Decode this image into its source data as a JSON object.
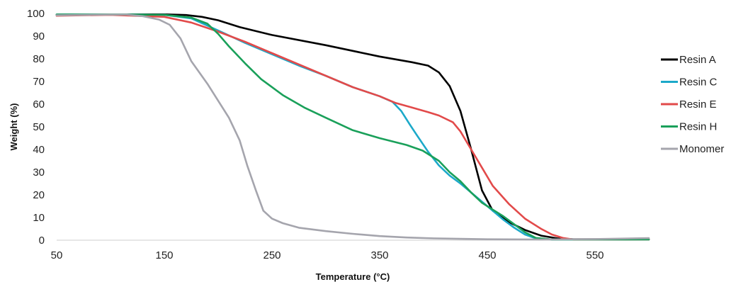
{
  "chart_data": {
    "type": "line",
    "xlabel": "Temperature (°C)",
    "ylabel": "Weight (%)",
    "xlim": [
      50,
      600
    ],
    "ylim": [
      0,
      100
    ],
    "x_ticks": [
      50,
      150,
      250,
      350,
      450,
      550
    ],
    "y_ticks": [
      0,
      10,
      20,
      30,
      40,
      50,
      60,
      70,
      80,
      90,
      100
    ],
    "grid": false,
    "legend_position": "right",
    "series": [
      {
        "name": "Resin A",
        "color": "#000000",
        "points": [
          [
            50,
            99.5
          ],
          [
            100,
            99.6
          ],
          [
            150,
            99.6
          ],
          [
            170,
            99.3
          ],
          [
            185,
            98.5
          ],
          [
            200,
            97
          ],
          [
            220,
            94
          ],
          [
            250,
            90.5
          ],
          [
            300,
            86
          ],
          [
            350,
            81
          ],
          [
            380,
            78.5
          ],
          [
            395,
            77
          ],
          [
            405,
            74
          ],
          [
            415,
            68
          ],
          [
            425,
            57
          ],
          [
            435,
            40
          ],
          [
            445,
            22
          ],
          [
            455,
            13
          ],
          [
            470,
            8
          ],
          [
            485,
            4.5
          ],
          [
            500,
            2
          ],
          [
            515,
            0.8
          ],
          [
            530,
            0.4
          ],
          [
            600,
            0.4
          ]
        ]
      },
      {
        "name": "Resin C",
        "color": "#1ca9c9",
        "points": [
          [
            50,
            99.5
          ],
          [
            100,
            99.6
          ],
          [
            150,
            99.4
          ],
          [
            175,
            97.8
          ],
          [
            200,
            92.5
          ],
          [
            225,
            87
          ],
          [
            250,
            82
          ],
          [
            275,
            77
          ],
          [
            300,
            72.5
          ],
          [
            325,
            67.5
          ],
          [
            350,
            63.5
          ],
          [
            362,
            61
          ],
          [
            370,
            57
          ],
          [
            378,
            51
          ],
          [
            385,
            46
          ],
          [
            395,
            39
          ],
          [
            405,
            33
          ],
          [
            415,
            28.5
          ],
          [
            425,
            25
          ],
          [
            435,
            21
          ],
          [
            445,
            17
          ],
          [
            455,
            13
          ],
          [
            465,
            9
          ],
          [
            475,
            5.5
          ],
          [
            485,
            2.5
          ],
          [
            495,
            0.8
          ],
          [
            510,
            0.3
          ],
          [
            600,
            0.3
          ]
        ]
      },
      {
        "name": "Resin E",
        "color": "#e24a4a",
        "points": [
          [
            50,
            99
          ],
          [
            100,
            99.4
          ],
          [
            150,
            98.5
          ],
          [
            175,
            96
          ],
          [
            200,
            92
          ],
          [
            225,
            87.5
          ],
          [
            250,
            82.5
          ],
          [
            275,
            77.5
          ],
          [
            300,
            72.5
          ],
          [
            325,
            67.5
          ],
          [
            350,
            63.5
          ],
          [
            365,
            60.5
          ],
          [
            380,
            58.5
          ],
          [
            395,
            56.5
          ],
          [
            405,
            55
          ],
          [
            418,
            52
          ],
          [
            425,
            48
          ],
          [
            435,
            40
          ],
          [
            445,
            32
          ],
          [
            455,
            24
          ],
          [
            470,
            16
          ],
          [
            485,
            9.5
          ],
          [
            500,
            5
          ],
          [
            510,
            2.5
          ],
          [
            520,
            1
          ],
          [
            530,
            0.3
          ],
          [
            600,
            0.3
          ]
        ]
      },
      {
        "name": "Resin H",
        "color": "#1aa05a",
        "points": [
          [
            50,
            99.5
          ],
          [
            100,
            99.6
          ],
          [
            150,
            99.4
          ],
          [
            175,
            98.2
          ],
          [
            190,
            95.5
          ],
          [
            200,
            91
          ],
          [
            210,
            85.5
          ],
          [
            225,
            78
          ],
          [
            240,
            71
          ],
          [
            260,
            64
          ],
          [
            280,
            58.5
          ],
          [
            300,
            54
          ],
          [
            325,
            48.5
          ],
          [
            350,
            45
          ],
          [
            375,
            42
          ],
          [
            390,
            39.5
          ],
          [
            405,
            35
          ],
          [
            415,
            30
          ],
          [
            425,
            26
          ],
          [
            435,
            21
          ],
          [
            445,
            16.5
          ],
          [
            455,
            13.5
          ],
          [
            465,
            10.5
          ],
          [
            475,
            7
          ],
          [
            485,
            3.5
          ],
          [
            495,
            1
          ],
          [
            510,
            0.3
          ],
          [
            600,
            0.3
          ]
        ]
      },
      {
        "name": "Monomer",
        "color": "#a5a5ad",
        "points": [
          [
            50,
            99.2
          ],
          [
            100,
            99.5
          ],
          [
            115,
            99.5
          ],
          [
            130,
            98.8
          ],
          [
            145,
            97.3
          ],
          [
            155,
            95
          ],
          [
            165,
            89
          ],
          [
            175,
            79
          ],
          [
            190,
            69
          ],
          [
            200,
            61.5
          ],
          [
            210,
            54
          ],
          [
            220,
            44
          ],
          [
            227,
            33
          ],
          [
            235,
            22
          ],
          [
            242,
            13
          ],
          [
            250,
            9.5
          ],
          [
            260,
            7.5
          ],
          [
            275,
            5.5
          ],
          [
            300,
            4
          ],
          [
            325,
            2.8
          ],
          [
            350,
            1.8
          ],
          [
            375,
            1.2
          ],
          [
            400,
            0.8
          ],
          [
            450,
            0.4
          ],
          [
            500,
            0.3
          ],
          [
            550,
            0.5
          ],
          [
            600,
            0.9
          ]
        ]
      }
    ]
  }
}
